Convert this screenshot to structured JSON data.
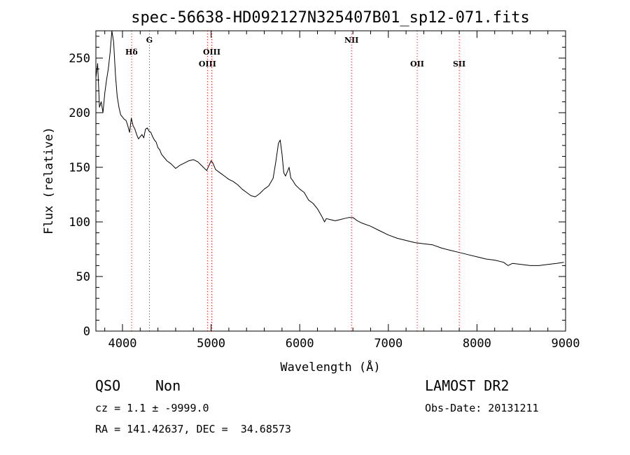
{
  "chart_data": {
    "type": "line",
    "title": "spec-56638-HD092127N325407B01_sp12-071.fits",
    "xlabel": "Wavelength (Å)",
    "ylabel": "Flux (relative)",
    "xlim": [
      3700,
      9000
    ],
    "ylim": [
      0,
      275
    ],
    "x_ticks": [
      4000,
      5000,
      6000,
      7000,
      8000,
      9000
    ],
    "y_ticks": [
      0,
      50,
      100,
      150,
      200,
      250
    ],
    "series": [
      {
        "x": [
          3700,
          3720,
          3740,
          3760,
          3780,
          3800,
          3820,
          3840,
          3860,
          3880,
          3900,
          3920,
          3940,
          3960,
          3980,
          4000,
          4020,
          4040,
          4060,
          4080,
          4100,
          4120,
          4140,
          4160,
          4180,
          4200,
          4220,
          4240,
          4260,
          4280,
          4300,
          4320,
          4340,
          4360,
          4380,
          4400,
          4420,
          4440,
          4460,
          4480,
          4500,
          4550,
          4600,
          4650,
          4700,
          4750,
          4800,
          4850,
          4900,
          4950,
          5000,
          5020,
          5050,
          5100,
          5150,
          5200,
          5250,
          5300,
          5350,
          5400,
          5450,
          5500,
          5550,
          5600,
          5650,
          5700,
          5730,
          5760,
          5780,
          5800,
          5820,
          5840,
          5860,
          5880,
          5900,
          5920,
          5950,
          6000,
          6050,
          6100,
          6150,
          6200,
          6250,
          6280,
          6300,
          6350,
          6400,
          6450,
          6500,
          6550,
          6600,
          6650,
          6700,
          6800,
          6900,
          7000,
          7100,
          7200,
          7300,
          7400,
          7500,
          7600,
          7700,
          7800,
          7900,
          8000,
          8100,
          8200,
          8300,
          8350,
          8400,
          8500,
          8600,
          8700,
          8800,
          8900,
          8980
        ],
        "y": [
          232,
          245,
          205,
          210,
          200,
          218,
          230,
          240,
          255,
          275,
          265,
          235,
          215,
          205,
          198,
          196,
          194,
          193,
          188,
          182,
          195,
          188,
          185,
          180,
          176,
          178,
          180,
          177,
          185,
          186,
          183,
          182,
          178,
          175,
          173,
          168,
          166,
          162,
          160,
          158,
          156,
          153,
          149,
          152,
          154,
          156,
          157,
          155,
          151,
          147,
          156,
          154,
          148,
          145,
          142,
          139,
          137,
          134,
          130,
          127,
          124,
          123,
          126,
          130,
          133,
          140,
          155,
          172,
          175,
          162,
          145,
          142,
          146,
          150,
          140,
          138,
          134,
          130,
          127,
          120,
          117,
          112,
          105,
          100,
          103,
          102,
          101,
          102,
          103,
          104,
          104,
          101,
          99,
          96,
          92,
          88,
          85,
          83,
          81,
          80,
          79,
          76,
          74,
          72,
          70,
          68,
          66,
          65,
          63,
          60,
          62,
          61,
          60,
          60,
          61,
          62,
          63
        ]
      }
    ],
    "emission_lines": [
      {
        "label": "Hδ",
        "x": 4102
      },
      {
        "label": "G",
        "x": 4304
      },
      {
        "label": "OIII",
        "x": 4959
      },
      {
        "label": "OIII",
        "x": 5007
      },
      {
        "label": "NII",
        "x": 6584
      },
      {
        "label": "OII",
        "x": 7325
      },
      {
        "label": "SII",
        "x": 7800
      }
    ]
  },
  "info": {
    "class": "QSO",
    "subclass": "Non",
    "survey": "LAMOST DR2",
    "cz": "cz = 1.1 ± -9999.0",
    "obs_date": "Obs-Date: 20131211",
    "coords": "RA = 141.42637, DEC =  34.68573"
  },
  "colors": {
    "axes": "#000000",
    "spectrum": "#000000",
    "line_marker": "#dd0000",
    "background": "#ffffff"
  }
}
